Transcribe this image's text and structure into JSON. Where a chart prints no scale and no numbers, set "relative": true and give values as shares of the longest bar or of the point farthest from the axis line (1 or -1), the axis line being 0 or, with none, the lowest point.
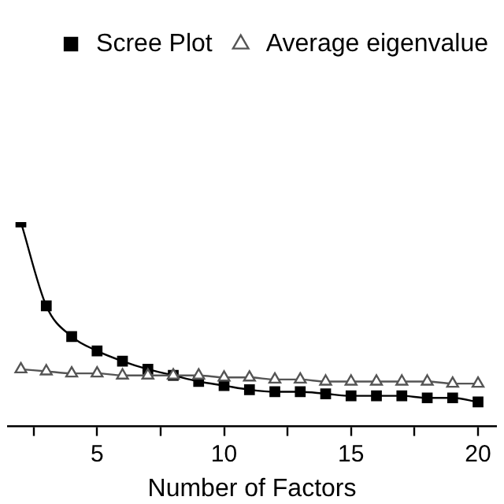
{
  "chart_data": {
    "type": "line",
    "relative": true,
    "xlabel": "Number of Factors",
    "x": [
      2,
      3,
      4,
      5,
      6,
      7,
      8,
      9,
      10,
      11,
      12,
      13,
      14,
      15,
      16,
      17,
      18,
      19,
      20
    ],
    "xlim": [
      1.5,
      20.7
    ],
    "xticks": [
      {
        "value": 2.5,
        "label": null
      },
      5,
      {
        "value": 7.5,
        "label": null
      },
      10,
      {
        "value": 12.5,
        "label": null
      },
      15,
      {
        "value": 17.5,
        "label": null
      },
      20
    ],
    "series": [
      {
        "name": "Scree Plot",
        "color": "#000000",
        "marker": "square",
        "values": [
          1,
          0.59,
          0.44,
          0.37,
          0.32,
          0.28,
          0.25,
          0.22,
          0.2,
          0.18,
          0.17,
          0.17,
          0.16,
          0.15,
          0.15,
          0.15,
          0.14,
          0.14,
          0.12
        ]
      },
      {
        "name": "Average eigenvalue",
        "color": "#555555",
        "marker": "triangle",
        "values": [
          0.28,
          0.27,
          0.26,
          0.26,
          0.25,
          0.25,
          0.25,
          0.25,
          0.24,
          0.24,
          0.23,
          0.23,
          0.22,
          0.22,
          0.22,
          0.22,
          0.22,
          0.21,
          0.21
        ]
      }
    ],
    "legend": "top right",
    "grid": false
  }
}
